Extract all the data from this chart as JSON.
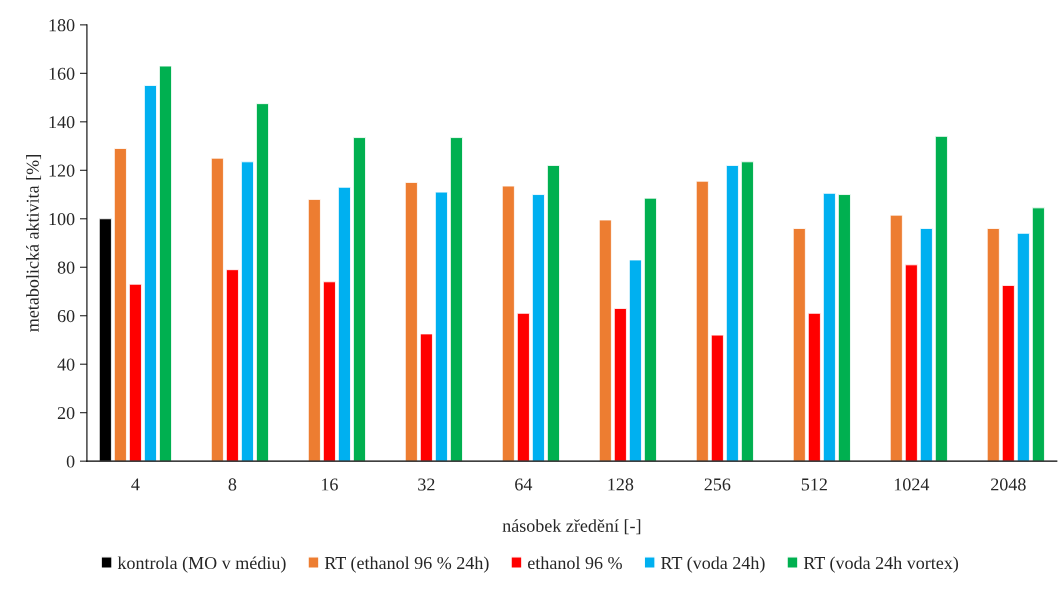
{
  "chart_data": {
    "type": "bar",
    "xlabel": "násobek zředění [-]",
    "ylabel": "metabolická aktivita [%]",
    "categories": [
      "4",
      "8",
      "16",
      "32",
      "64",
      "128",
      "256",
      "512",
      "1024",
      "2048"
    ],
    "series": [
      {
        "name": "kontrola (MO v médiu)",
        "color": "#000000",
        "values": [
          100,
          null,
          null,
          null,
          null,
          null,
          null,
          null,
          null,
          null
        ]
      },
      {
        "name": "RT (ethanol 96 % 24h)",
        "color": "#ed7d31",
        "values": [
          129,
          125,
          108,
          115,
          113.5,
          99.5,
          115.5,
          96,
          101.5,
          96
        ]
      },
      {
        "name": "ethanol 96 %",
        "color": "#ff0000",
        "values": [
          73,
          79,
          74,
          52.5,
          61,
          63,
          52,
          61,
          81,
          72.5
        ]
      },
      {
        "name": "RT (voda 24h)",
        "color": "#00b0f0",
        "values": [
          155,
          123.5,
          113,
          111,
          110,
          83,
          122,
          110.5,
          96,
          94
        ]
      },
      {
        "name": "RT (voda 24h vortex)",
        "color": "#00b050",
        "values": [
          163,
          147.5,
          133.5,
          133.5,
          122,
          108.5,
          123.5,
          110,
          134,
          104.5
        ]
      }
    ],
    "ylim": [
      0,
      180
    ],
    "yticks": [
      0,
      20,
      40,
      60,
      80,
      100,
      120,
      140,
      160,
      180
    ],
    "grid": false,
    "legend": "bottom"
  }
}
